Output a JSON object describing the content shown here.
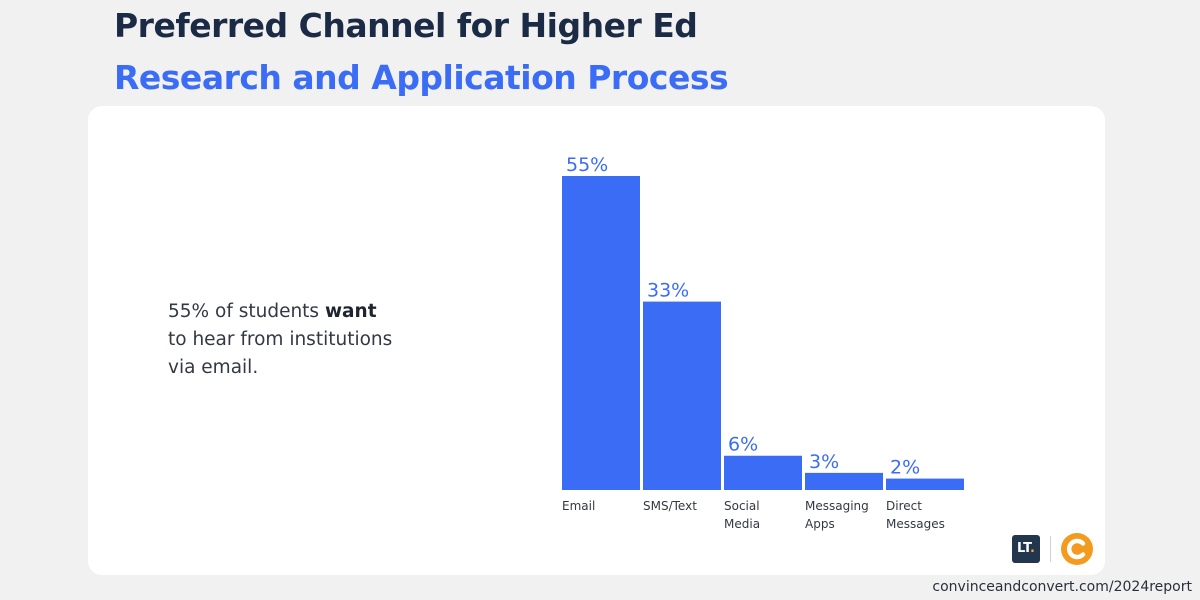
{
  "header": {
    "title_line1": "Preferred Channel for Higher Ed",
    "title_line2": "Research and Application Process"
  },
  "callout": {
    "line1_pre": "55% of students ",
    "line1_bold": "want",
    "line2": "to hear from institutions",
    "line3": "via email."
  },
  "footer": {
    "url": "convinceandconvert.com/2024report",
    "logo1_text": "LT",
    "logo1_dot": "."
  },
  "colors": {
    "bar": "#3b6cf6",
    "title_dark": "#1c2b45",
    "title_accent": "#3b6cf6",
    "logo_orange": "#f39a1f"
  },
  "icons": {
    "logo1": "lt-logo-icon",
    "logo2": "convince-convert-logo-icon"
  },
  "chart_data": {
    "type": "bar",
    "categories": [
      [
        "Email"
      ],
      [
        "SMS/Text"
      ],
      [
        "Social",
        "Media"
      ],
      [
        "Messaging",
        "Apps"
      ],
      [
        "Direct",
        "Messages"
      ]
    ],
    "values": [
      55,
      33,
      6,
      3,
      2
    ],
    "value_labels": [
      "55%",
      "33%",
      "6%",
      "3%",
      "2%"
    ],
    "ylim": [
      0,
      55
    ],
    "grid": false,
    "legend": "none"
  }
}
